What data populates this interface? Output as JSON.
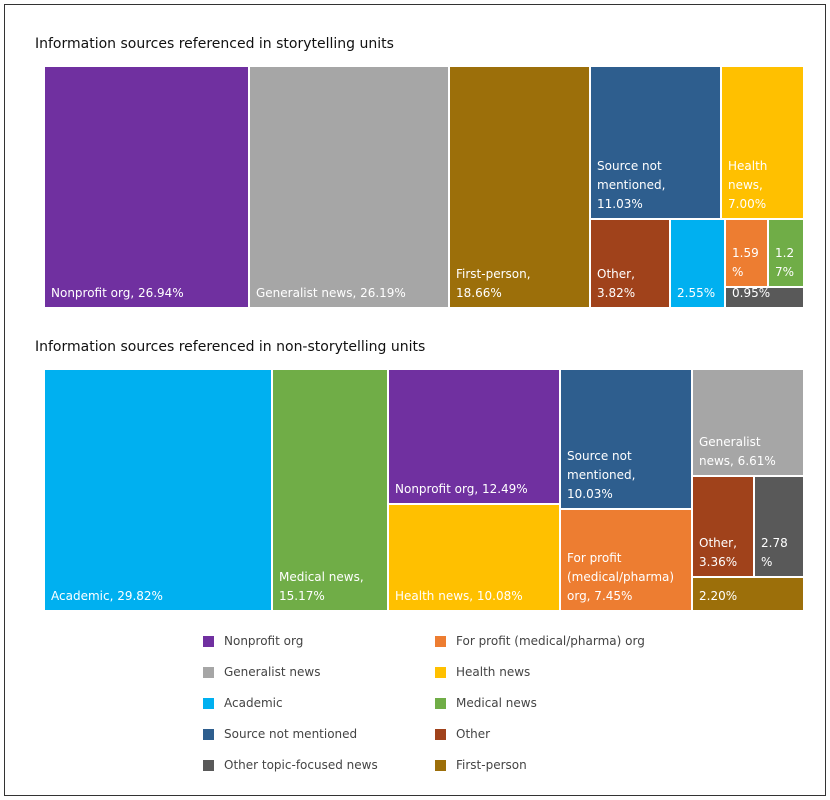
{
  "colors": {
    "nonprofit": "#7030a0",
    "generalist": "#a6a6a6",
    "academic": "#00b0f0",
    "not_mentioned": "#2e5e8e",
    "other_topic": "#595959",
    "for_profit": "#ed7d31",
    "health": "#ffc000",
    "medical": "#70ad47",
    "other": "#a0421b",
    "first_person": "#9c6f0a"
  },
  "chart_data": [
    {
      "type": "treemap",
      "title": "Information sources referenced in storytelling units",
      "cells": [
        {
          "category": "Nonprofit org",
          "value": 26.94,
          "label": "Nonprofit org, 26.94%",
          "color_key": "nonprofit"
        },
        {
          "category": "Generalist news",
          "value": 26.19,
          "label": "Generalist news, 26.19%",
          "color_key": "generalist"
        },
        {
          "category": "First-person",
          "value": 18.66,
          "label": "First-person,\n18.66%",
          "color_key": "first_person"
        },
        {
          "category": "Source not mentioned",
          "value": 11.03,
          "label": "Source not\nmentioned,\n11.03%",
          "color_key": "not_mentioned"
        },
        {
          "category": "Health news",
          "value": 7.0,
          "label": "Health\nnews,\n7.00%",
          "color_key": "health"
        },
        {
          "category": "Other",
          "value": 3.82,
          "label": "Other,\n3.82%",
          "color_key": "other"
        },
        {
          "category": "Academic",
          "value": 2.55,
          "label": "2.55%",
          "color_key": "academic"
        },
        {
          "category": "For profit (medical/pharma) org",
          "value": 1.59,
          "label": "1.59\n%",
          "color_key": "for_profit"
        },
        {
          "category": "Medical news",
          "value": 1.27,
          "label": "1.2\n7%",
          "color_key": "medical"
        },
        {
          "category": "Other topic-focused news",
          "value": 0.95,
          "label": "0.95%",
          "color_key": "other_topic"
        }
      ]
    },
    {
      "type": "treemap",
      "title": "Information sources referenced in non-storytelling units",
      "cells": [
        {
          "category": "Academic",
          "value": 29.82,
          "label": "Academic, 29.82%",
          "color_key": "academic"
        },
        {
          "category": "Medical news",
          "value": 15.17,
          "label": "Medical news,\n15.17%",
          "color_key": "medical"
        },
        {
          "category": "Nonprofit org",
          "value": 12.49,
          "label": "Nonprofit org, 12.49%",
          "color_key": "nonprofit"
        },
        {
          "category": "Health news",
          "value": 10.08,
          "label": "Health news, 10.08%",
          "color_key": "health"
        },
        {
          "category": "Source not mentioned",
          "value": 10.03,
          "label": "Source not\nmentioned,\n10.03%",
          "color_key": "not_mentioned"
        },
        {
          "category": "For profit (medical/pharma) org",
          "value": 7.45,
          "label": "For profit\n(medical/pharma)\norg, 7.45%",
          "color_key": "for_profit"
        },
        {
          "category": "Generalist news",
          "value": 6.61,
          "label": "Generalist\nnews, 6.61%",
          "color_key": "generalist"
        },
        {
          "category": "Other",
          "value": 3.36,
          "label": "Other,\n3.36%",
          "color_key": "other"
        },
        {
          "category": "Other topic-focused news",
          "value": 2.78,
          "label": "2.78\n%",
          "color_key": "other_topic"
        },
        {
          "category": "First-person",
          "value": 2.2,
          "label": "2.20%",
          "color_key": "first_person"
        }
      ]
    }
  ],
  "legend": [
    {
      "label": "Nonprofit org",
      "color_key": "nonprofit"
    },
    {
      "label": "Generalist news",
      "color_key": "generalist"
    },
    {
      "label": "Academic",
      "color_key": "academic"
    },
    {
      "label": "Source not mentioned",
      "color_key": "not_mentioned"
    },
    {
      "label": "Other topic-focused news",
      "color_key": "other_topic"
    },
    {
      "label": "For profit (medical/pharma) org",
      "color_key": "for_profit"
    },
    {
      "label": "Health news",
      "color_key": "health"
    },
    {
      "label": "Medical news",
      "color_key": "medical"
    },
    {
      "label": "Other",
      "color_key": "other"
    },
    {
      "label": "First-person",
      "color_key": "first_person"
    }
  ]
}
